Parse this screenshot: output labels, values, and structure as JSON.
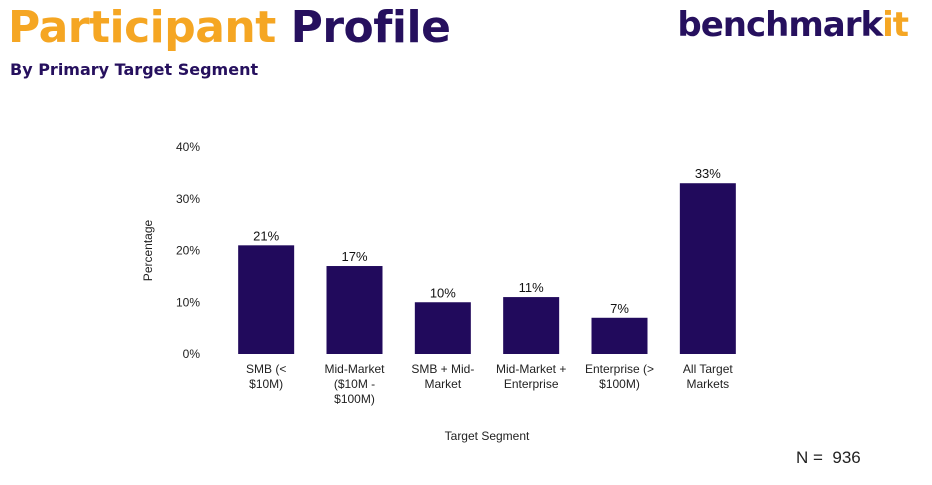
{
  "header": {
    "title_part1": "Participant",
    "title_part2": "Profile",
    "subtitle": "By Primary Target Segment"
  },
  "logo": {
    "main": "benchmark",
    "accent": "it",
    "accent_color": "#F5A623",
    "main_color": "#26105E"
  },
  "footer": {
    "sample_size": "N =  936"
  },
  "colors": {
    "bar": "#210A5C",
    "title_orange": "#F5A623",
    "title_navy": "#26105E"
  },
  "chart_data": {
    "type": "bar",
    "title": "",
    "xlabel": "Target Segment",
    "ylabel": "Percentage",
    "ylim": [
      0,
      40
    ],
    "yticks": [
      0,
      10,
      20,
      30,
      40
    ],
    "ytick_labels": [
      "0%",
      "10%",
      "20%",
      "30%",
      "40%"
    ],
    "grid": false,
    "categories": [
      [
        "SMB (<",
        "$10M)"
      ],
      [
        "Mid-Market",
        "($10M -",
        "$100M)"
      ],
      [
        "SMB + Mid-",
        "Market"
      ],
      [
        "Mid-Market +",
        "Enterprise"
      ],
      [
        "Enterprise (>",
        "$100M)"
      ],
      [
        "All Target",
        "Markets"
      ]
    ],
    "values": [
      21,
      17,
      10,
      11,
      7,
      33
    ],
    "data_labels": [
      "21%",
      "17%",
      "10%",
      "11%",
      "7%",
      "33%"
    ]
  }
}
